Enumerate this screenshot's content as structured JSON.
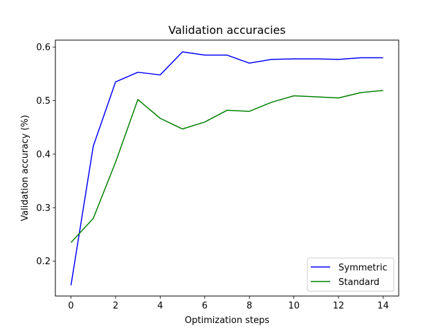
{
  "chart_data": {
    "type": "line",
    "title": "Validation accuracies",
    "xlabel": "Optimization steps",
    "ylabel": "Validation accuracy (%)",
    "xlim": [
      -0.7,
      14.7
    ],
    "ylim": [
      0.135,
      0.613
    ],
    "xticks": [
      0,
      2,
      4,
      6,
      8,
      10,
      12,
      14
    ],
    "yticks": [
      0.2,
      0.3,
      0.4,
      0.5,
      0.6
    ],
    "xtick_labels": [
      "0",
      "2",
      "4",
      "6",
      "8",
      "10",
      "12",
      "14"
    ],
    "ytick_labels": [
      "0.2",
      "0.3",
      "0.4",
      "0.5",
      "0.6"
    ],
    "grid": false,
    "legend_position": "lower-right",
    "x": [
      0,
      1,
      2,
      3,
      4,
      5,
      6,
      7,
      8,
      9,
      10,
      11,
      12,
      13,
      14
    ],
    "series": [
      {
        "name": "Symmetric",
        "color": "#0000ff",
        "values": [
          0.155,
          0.415,
          0.535,
          0.553,
          0.548,
          0.591,
          0.585,
          0.585,
          0.57,
          0.577,
          0.578,
          0.578,
          0.577,
          0.58,
          0.58
        ]
      },
      {
        "name": "Standard",
        "color": "#008000",
        "values": [
          0.235,
          0.28,
          0.385,
          0.502,
          0.467,
          0.447,
          0.46,
          0.482,
          0.48,
          0.497,
          0.509,
          0.507,
          0.505,
          0.515,
          0.519
        ]
      }
    ]
  }
}
